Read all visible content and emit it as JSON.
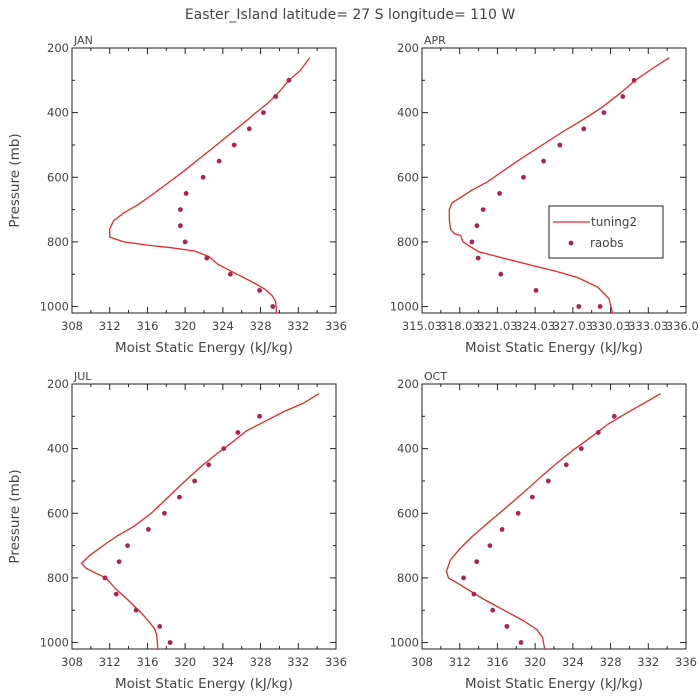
{
  "figure": {
    "title": "Easter_Island   latitude= 27 S longitude= 110 W"
  },
  "legend": {
    "model_label": "tuning2",
    "obs_label": "raobs"
  },
  "colors": {
    "model": "#e8262c",
    "obs": "#b22052",
    "axis": "#222222",
    "text": "#444444"
  },
  "chart_data": [
    {
      "type": "line",
      "title": "JAN",
      "xlabel": "Moist Static Energy (kJ/kg)",
      "ylabel": "Pressure (mb)",
      "xlim": [
        308,
        336
      ],
      "ylim": [
        1020,
        200
      ],
      "xticks": [
        308,
        312,
        316,
        320,
        324,
        328,
        332,
        336
      ],
      "xtick_labels": [
        "308",
        "312",
        "316",
        "320",
        "324",
        "328",
        "332",
        "336"
      ],
      "yticks": [
        200,
        400,
        600,
        800,
        1000
      ],
      "ytick_labels": [
        "200",
        "400",
        "600",
        "800",
        "1000"
      ],
      "show_ylabel": true,
      "show_legend": false,
      "series": [
        {
          "name": "tuning2",
          "kind": "line",
          "x": [
            333.2,
            332.2,
            331.0,
            330.0,
            328.8,
            327.5,
            326.1,
            324.6,
            322.9,
            321.4,
            319.9,
            318.3,
            316.7,
            315.0,
            313.5,
            312.4,
            312.0,
            312.0,
            313.5,
            316.0,
            318.5,
            321.0,
            322.5,
            323.5,
            325.5,
            327.2,
            328.4,
            329.2,
            329.6,
            329.7
          ],
          "y": [
            230,
            270,
            300,
            335,
            370,
            400,
            435,
            470,
            510,
            545,
            580,
            615,
            650,
            685,
            710,
            735,
            760,
            785,
            800,
            810,
            818,
            828,
            845,
            870,
            900,
            925,
            945,
            965,
            985,
            1020
          ]
        },
        {
          "name": "raobs",
          "kind": "scatter",
          "x": [
            331.0,
            329.6,
            328.3,
            326.8,
            325.2,
            323.6,
            321.9,
            320.1,
            319.5,
            319.5,
            320.0,
            322.3,
            324.8,
            327.9,
            329.3
          ],
          "y": [
            300,
            350,
            400,
            450,
            500,
            550,
            600,
            650,
            700,
            750,
            800,
            850,
            900,
            950,
            1000
          ]
        }
      ]
    },
    {
      "type": "line",
      "title": "APR",
      "xlabel": "Moist Static Energy (kJ/kg)",
      "ylabel": "",
      "xlim": [
        315.03,
        336.03
      ],
      "ylim": [
        1020,
        200
      ],
      "xticks": [
        315.03,
        318.03,
        321.03,
        324.03,
        327.03,
        330.03,
        333.03,
        336.03
      ],
      "xtick_labels": [
        "315.03",
        "318.03",
        "321.03",
        "324.03",
        "327.03",
        "330.03",
        "333.03",
        "336.03"
      ],
      "yticks": [
        200,
        400,
        600,
        800,
        1000
      ],
      "ytick_labels": [
        "200",
        "400",
        "600",
        "800",
        "1000"
      ],
      "show_ylabel": false,
      "show_legend": true,
      "series": [
        {
          "name": "tuning2",
          "kind": "line",
          "x": [
            334.7,
            333.3,
            332.0,
            330.8,
            329.3,
            327.7,
            326.2,
            324.6,
            323.0,
            321.5,
            320.2,
            319.0,
            318.0,
            317.4,
            317.2,
            317.2,
            317.3,
            317.6,
            318.1,
            318.3,
            319.5,
            321.5,
            323.5,
            325.6,
            327.4,
            329.0,
            329.9,
            330.2
          ],
          "y": [
            230,
            265,
            300,
            340,
            385,
            425,
            460,
            500,
            540,
            580,
            615,
            640,
            665,
            680,
            700,
            730,
            760,
            775,
            780,
            800,
            830,
            850,
            870,
            890,
            910,
            940,
            975,
            1020
          ]
        },
        {
          "name": "raobs",
          "kind": "scatter",
          "x": [
            331.9,
            331.0,
            329.5,
            327.9,
            326.0,
            324.7,
            323.1,
            321.2,
            319.9,
            319.4,
            319.0,
            319.5,
            321.3,
            324.1,
            327.5,
            329.2
          ],
          "y": [
            300,
            350,
            400,
            450,
            500,
            550,
            600,
            650,
            700,
            750,
            800,
            850,
            900,
            950,
            1000,
            1000
          ]
        }
      ]
    },
    {
      "type": "line",
      "title": "JUL",
      "xlabel": "Moist Static Energy (kJ/kg)",
      "ylabel": "Pressure (mb)",
      "xlim": [
        308,
        336
      ],
      "ylim": [
        1020,
        200
      ],
      "xticks": [
        308,
        312,
        316,
        320,
        324,
        328,
        332,
        336
      ],
      "xtick_labels": [
        "308",
        "312",
        "316",
        "320",
        "324",
        "328",
        "332",
        "336"
      ],
      "yticks": [
        200,
        400,
        600,
        800,
        1000
      ],
      "ytick_labels": [
        "200",
        "400",
        "600",
        "800",
        "1000"
      ],
      "show_ylabel": true,
      "show_legend": false,
      "series": [
        {
          "name": "tuning2",
          "kind": "line",
          "x": [
            334.2,
            332.5,
            330.5,
            328.5,
            326.5,
            325.0,
            323.4,
            321.7,
            320.0,
            318.2,
            316.4,
            314.6,
            312.8,
            311.3,
            309.9,
            309.0,
            309.5,
            310.5,
            311.6,
            312.5,
            314.0,
            315.4,
            316.3,
            316.8,
            317.0,
            317.1
          ],
          "y": [
            230,
            260,
            285,
            315,
            345,
            380,
            415,
            455,
            500,
            550,
            600,
            640,
            670,
            700,
            730,
            755,
            770,
            785,
            800,
            830,
            870,
            910,
            940,
            960,
            980,
            1020
          ]
        },
        {
          "name": "raobs",
          "kind": "scatter",
          "x": [
            327.9,
            325.6,
            324.1,
            322.5,
            321.0,
            319.4,
            317.8,
            316.1,
            313.9,
            313.0,
            311.5,
            312.7,
            314.8,
            317.3,
            318.4
          ],
          "y": [
            300,
            350,
            400,
            450,
            500,
            550,
            600,
            650,
            700,
            750,
            800,
            850,
            900,
            950,
            1000
          ]
        }
      ]
    },
    {
      "type": "line",
      "title": "OCT",
      "xlabel": "Moist Static Energy (kJ/kg)",
      "ylabel": "",
      "xlim": [
        308,
        336
      ],
      "ylim": [
        1020,
        200
      ],
      "xticks": [
        308,
        312,
        316,
        320,
        324,
        328,
        332,
        336
      ],
      "xtick_labels": [
        "308",
        "312",
        "316",
        "320",
        "324",
        "328",
        "332",
        "336"
      ],
      "yticks": [
        200,
        400,
        600,
        800,
        1000
      ],
      "ytick_labels": [
        "200",
        "400",
        "600",
        "800",
        "1000"
      ],
      "show_ylabel": false,
      "show_legend": false,
      "series": [
        {
          "name": "tuning2",
          "kind": "line",
          "x": [
            333.3,
            331.5,
            329.7,
            327.7,
            325.9,
            324.0,
            322.3,
            320.5,
            318.8,
            317.0,
            315.2,
            313.4,
            312.0,
            311.0,
            310.6,
            310.8,
            311.4,
            312.8,
            314.8,
            317.0,
            318.9,
            320.2,
            320.8,
            321.0
          ],
          "y": [
            230,
            260,
            290,
            325,
            365,
            405,
            445,
            490,
            535,
            580,
            625,
            670,
            710,
            745,
            780,
            800,
            810,
            835,
            870,
            905,
            935,
            960,
            985,
            1020
          ]
        },
        {
          "name": "raobs",
          "kind": "scatter",
          "x": [
            328.4,
            326.7,
            324.9,
            323.3,
            321.4,
            319.7,
            318.2,
            316.5,
            315.2,
            313.8,
            312.4,
            313.5,
            315.5,
            317.0,
            318.5
          ],
          "y": [
            300,
            350,
            400,
            450,
            500,
            550,
            600,
            650,
            700,
            750,
            800,
            850,
            900,
            950,
            1000
          ]
        }
      ]
    }
  ]
}
